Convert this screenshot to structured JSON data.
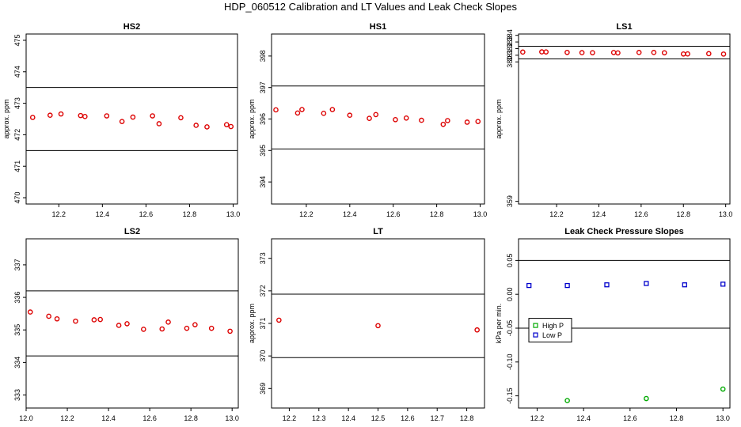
{
  "figure_title": "HDP_060512  Calibration and LT Values and Leak Check Slopes",
  "chart_data": [
    {
      "type": "scatter",
      "title": "HS2",
      "ylabel": "approx. ppm",
      "xlim": [
        12.05,
        13.02
      ],
      "ylim": [
        469.8,
        475.2
      ],
      "xticks": [
        12.2,
        12.4,
        12.6,
        12.8,
        13.0
      ],
      "xtick_labels": [
        "12.2",
        "12.4",
        "12.6",
        "12.8",
        "13.0"
      ],
      "yticks": [
        470,
        471,
        472,
        473,
        474,
        475
      ],
      "ytick_labels": [
        "470",
        "471",
        "472",
        "473",
        "474",
        "475"
      ],
      "hlines": [
        471.5,
        473.5
      ],
      "series": [
        {
          "name": "HS2",
          "color": "#dd0000",
          "x": [
            12.08,
            12.16,
            12.21,
            12.3,
            12.32,
            12.42,
            12.49,
            12.54,
            12.63,
            12.66,
            12.76,
            12.83,
            12.88,
            12.97,
            12.99
          ],
          "y": [
            472.55,
            472.62,
            472.66,
            472.61,
            472.58,
            472.6,
            472.42,
            472.56,
            472.6,
            472.35,
            472.54,
            472.3,
            472.25,
            472.32,
            472.26
          ]
        }
      ]
    },
    {
      "type": "scatter",
      "title": "HS1",
      "ylabel": "approx. ppm",
      "xlim": [
        12.04,
        13.02
      ],
      "ylim": [
        393.3,
        398.7
      ],
      "xticks": [
        12.2,
        12.4,
        12.6,
        12.8,
        13.0
      ],
      "xtick_labels": [
        "12.2",
        "12.4",
        "12.6",
        "12.8",
        "13.0"
      ],
      "yticks": [
        394,
        395,
        396,
        397,
        398
      ],
      "ytick_labels": [
        "394",
        "395",
        "396",
        "397",
        "398"
      ],
      "hlines": [
        395.05,
        397.05
      ],
      "series": [
        {
          "name": "HS1",
          "color": "#dd0000",
          "x": [
            12.06,
            12.16,
            12.18,
            12.28,
            12.32,
            12.4,
            12.49,
            12.52,
            12.61,
            12.66,
            12.73,
            12.83,
            12.85,
            12.94,
            12.99
          ],
          "y": [
            396.29,
            396.19,
            396.3,
            396.18,
            396.3,
            396.12,
            396.02,
            396.14,
            395.98,
            396.03,
            395.96,
            395.83,
            395.95,
            395.9,
            395.92
          ]
        }
      ]
    },
    {
      "type": "scatter",
      "title": "LS1",
      "ylabel": "approx. ppm",
      "xlim": [
        12.02,
        13.02
      ],
      "ylim": [
        358.6,
        384.2
      ],
      "xticks": [
        12.2,
        12.4,
        12.6,
        12.8,
        13.0
      ],
      "xtick_labels": [
        "12.2",
        "12.4",
        "12.6",
        "12.8",
        "13.0"
      ],
      "yticks": [
        359,
        380,
        381,
        382,
        383,
        384
      ],
      "ytick_labels": [
        "359",
        "380",
        "381",
        "382",
        "383",
        "384"
      ],
      "hlines": [
        380.45,
        382.35
      ],
      "series": [
        {
          "name": "LS1",
          "color": "#dd0000",
          "x": [
            12.04,
            12.13,
            12.15,
            12.25,
            12.32,
            12.37,
            12.47,
            12.49,
            12.59,
            12.66,
            12.71,
            12.8,
            12.82,
            12.92,
            12.99
          ],
          "y": [
            381.48,
            381.51,
            381.5,
            381.43,
            381.39,
            381.38,
            381.41,
            381.35,
            381.42,
            381.42,
            381.37,
            381.19,
            381.2,
            381.24,
            381.18
          ]
        }
      ]
    },
    {
      "type": "scatter",
      "title": "LS2",
      "ylabel": "",
      "xlim": [
        12.0,
        13.03
      ],
      "ylim": [
        332.6,
        337.8
      ],
      "xticks": [
        12.0,
        12.2,
        12.4,
        12.6,
        12.8,
        13.0
      ],
      "xtick_labels": [
        "12.0",
        "12.2",
        "12.4",
        "12.6",
        "12.8",
        "13.0"
      ],
      "yticks": [
        333,
        334,
        335,
        336,
        337
      ],
      "ytick_labels": [
        "333",
        "334",
        "335",
        "336",
        "337"
      ],
      "hlines": [
        334.2,
        336.2
      ],
      "series": [
        {
          "name": "LS2",
          "color": "#dd0000",
          "x": [
            12.02,
            12.11,
            12.15,
            12.24,
            12.33,
            12.36,
            12.45,
            12.49,
            12.57,
            12.66,
            12.69,
            12.78,
            12.82,
            12.9,
            12.99
          ],
          "y": [
            335.55,
            335.42,
            335.34,
            335.27,
            335.31,
            335.32,
            335.14,
            335.19,
            335.02,
            335.03,
            335.24,
            335.05,
            335.16,
            335.05,
            334.96
          ]
        }
      ]
    },
    {
      "type": "scatter",
      "title": "LT",
      "ylabel": "approx. ppm",
      "xlim": [
        12.14,
        12.86
      ],
      "ylim": [
        368.4,
        373.6
      ],
      "xticks": [
        12.2,
        12.3,
        12.4,
        12.5,
        12.6,
        12.7,
        12.8
      ],
      "xtick_labels": [
        "12.2",
        "12.3",
        "12.4",
        "12.5",
        "12.6",
        "12.7",
        "12.8"
      ],
      "yticks": [
        369,
        370,
        371,
        372,
        373
      ],
      "ytick_labels": [
        "369",
        "370",
        "371",
        "372",
        "373"
      ],
      "hlines": [
        369.95,
        371.9
      ],
      "series": [
        {
          "name": "LT",
          "color": "#dd0000",
          "x": [
            12.165,
            12.5,
            12.835
          ],
          "y": [
            371.1,
            370.93,
            370.8
          ]
        }
      ]
    },
    {
      "type": "scatter",
      "title": "Leak Check Pressure Slopes",
      "ylabel": "kPa per min.",
      "xlim": [
        12.12,
        13.03
      ],
      "ylim": [
        -0.168,
        0.082
      ],
      "xticks": [
        12.2,
        12.4,
        12.6,
        12.8,
        13.0
      ],
      "xtick_labels": [
        "12.2",
        "12.4",
        "12.6",
        "12.8",
        "13.0"
      ],
      "yticks": [
        -0.15,
        -0.1,
        -0.05,
        0.0,
        0.05
      ],
      "ytick_labels": [
        "-0.15",
        "-0.10",
        "-0.05",
        "0.00",
        "0.05"
      ],
      "hlines": [
        -0.05,
        0.05
      ],
      "legend": {
        "position": "center-left",
        "entries": [
          "High P",
          "Low P"
        ]
      },
      "series": [
        {
          "name": "High P",
          "color": "#00aa00",
          "marker": "circle",
          "x": [
            12.33,
            12.67,
            13.0
          ],
          "y": [
            -0.157,
            -0.154,
            -0.14
          ]
        },
        {
          "name": "Low P",
          "color": "#0000cc",
          "marker": "square",
          "x": [
            12.165,
            12.33,
            12.5,
            12.67,
            12.835,
            13.0
          ],
          "y": [
            0.013,
            0.013,
            0.014,
            0.016,
            0.014,
            0.015
          ]
        }
      ]
    }
  ]
}
